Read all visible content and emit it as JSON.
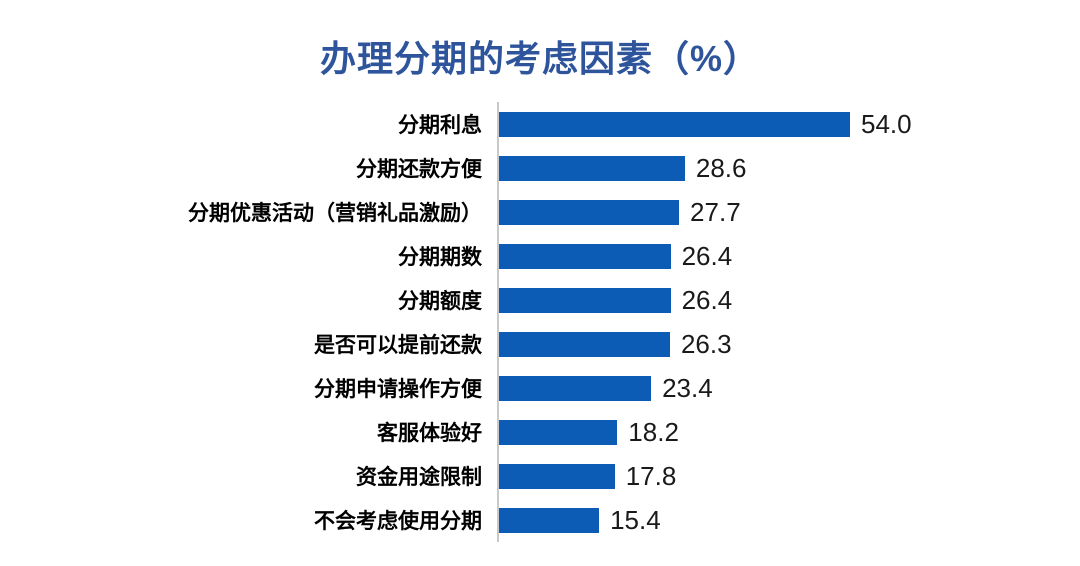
{
  "title": "办理分期的考虑因素（%）",
  "colors": {
    "bar": "#0C5CB5",
    "title_text": "#2E549C",
    "axis_line": "#C9C9C9",
    "category_text": "#000000",
    "value_text": "#1A1A1A",
    "background": "#FFFFFF"
  },
  "chart_data": {
    "type": "bar",
    "orientation": "horizontal",
    "title": "办理分期的考虑因素（%）",
    "xlabel": "",
    "ylabel": "",
    "xlim": [
      0,
      57
    ],
    "grid": false,
    "legend": false,
    "value_labels_shown": true,
    "categories": [
      "分期利息",
      "分期还款方便",
      "分期优惠活动（营销礼品激励）",
      "分期期数",
      "分期额度",
      "是否可以提前还款",
      "分期申请操作方便",
      "客服体验好",
      "资金用途限制",
      "不会考虑使用分期"
    ],
    "values": [
      54.0,
      28.6,
      27.7,
      26.4,
      26.4,
      26.3,
      23.4,
      18.2,
      17.8,
      15.4
    ],
    "value_labels": [
      "54.0",
      "28.6",
      "27.7",
      "26.4",
      "26.4",
      "26.3",
      "23.4",
      "18.2",
      "17.8",
      "15.4"
    ]
  }
}
